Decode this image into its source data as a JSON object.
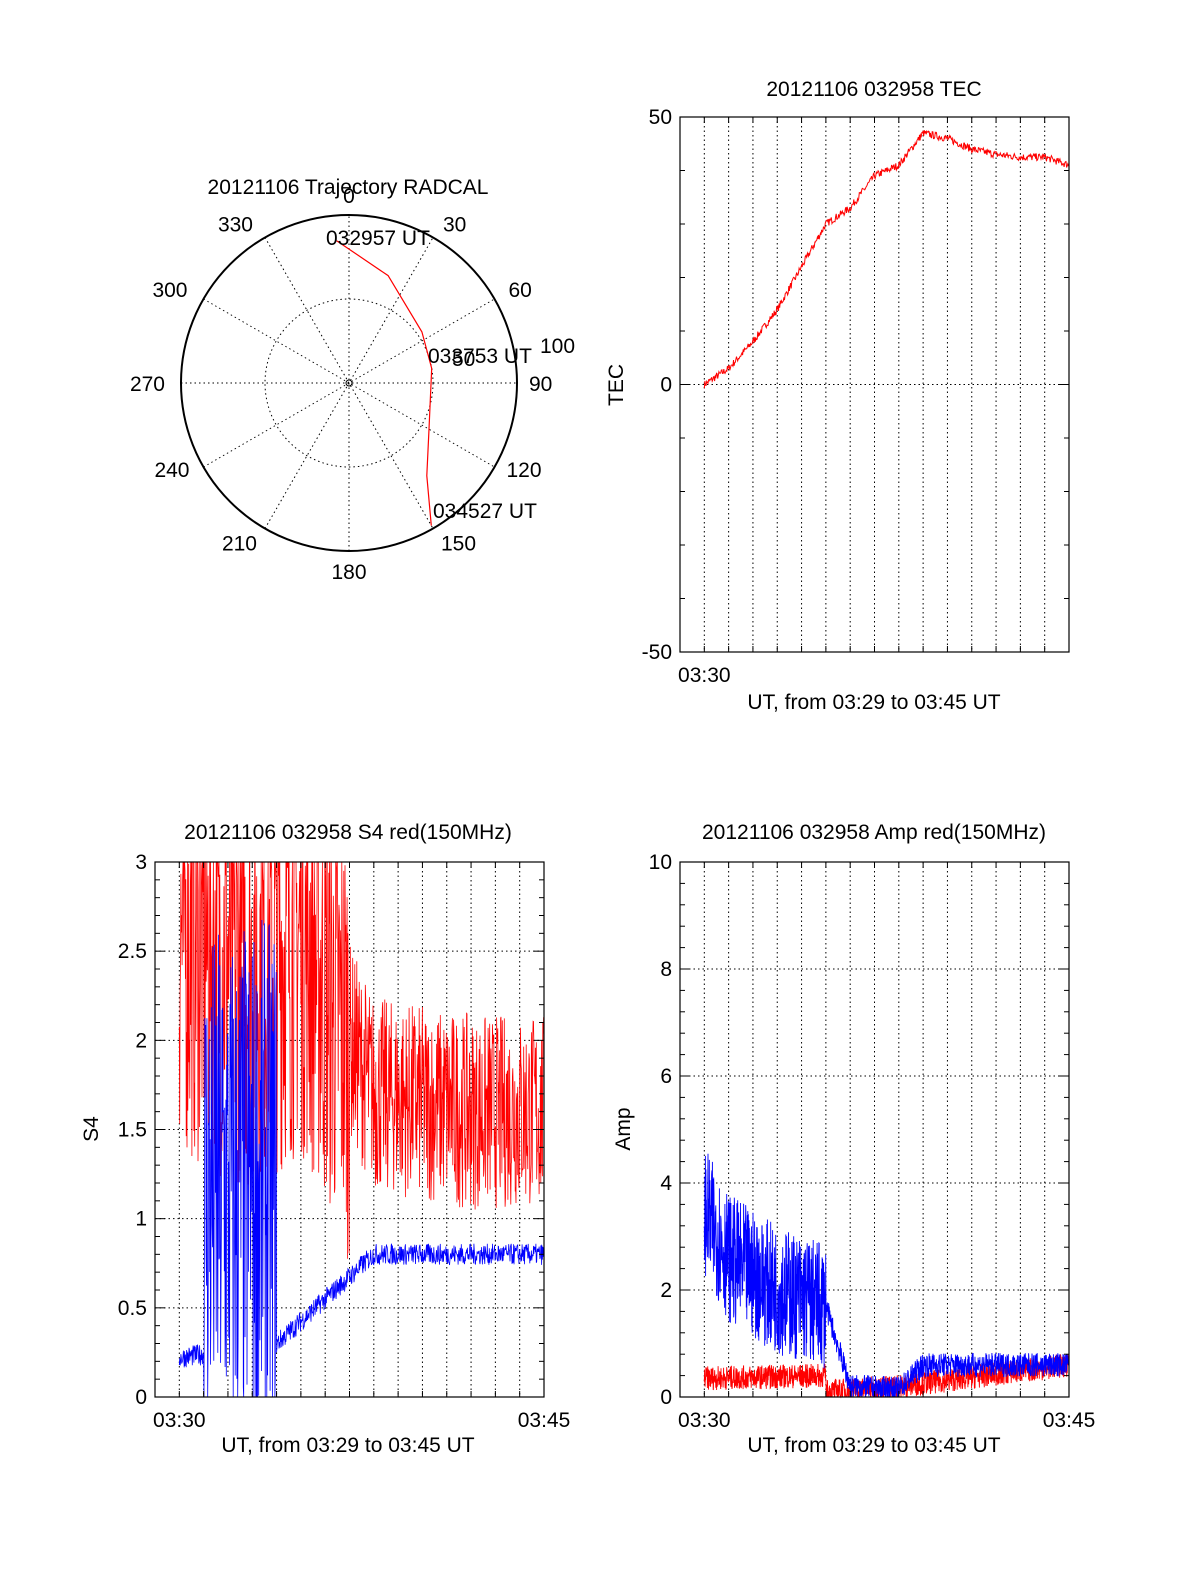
{
  "colors": {
    "red": "#ff0000",
    "blue": "#0000ff",
    "axis": "#000000"
  },
  "chart_data": [
    {
      "type": "polar",
      "title": "20121106 Trajectory RADCAL",
      "angle_labels": [
        "0",
        "30",
        "60",
        "90",
        "120",
        "150",
        "180",
        "210",
        "240",
        "270",
        "300",
        "330"
      ],
      "radius_labels": [
        "50",
        "100"
      ],
      "rmax": 100,
      "grid": true,
      "series": [
        {
          "color": "red",
          "points": [
            [
              -5,
              85
            ],
            [
              20,
              68
            ],
            [
              55,
              53
            ],
            [
              80,
              50
            ],
            [
              120,
              55
            ],
            [
              140,
              72
            ],
            [
              150,
              98
            ]
          ]
        }
      ],
      "annotations": [
        "032957 UT",
        "033753 UT",
        "034527 UT"
      ]
    },
    {
      "type": "line",
      "title": "20121106 032958 TEC",
      "xlabel": "UT, from 03:29 to 03:45 UT",
      "ylabel": "TEC",
      "xlim": [
        "03:29",
        "03:45"
      ],
      "xticks": [
        "03:30"
      ],
      "ylim": [
        -50,
        50
      ],
      "yticks": [
        "-50",
        "0",
        "50"
      ],
      "grid": true,
      "series": [
        {
          "color": "red",
          "x": [
            "03:30",
            "03:31",
            "03:32",
            "03:33",
            "03:34",
            "03:35",
            "03:36",
            "03:37",
            "03:38",
            "03:39",
            "03:40",
            "03:41",
            "03:42",
            "03:43",
            "03:44",
            "03:45"
          ],
          "y": [
            0,
            3,
            8,
            14,
            22,
            30,
            33,
            39,
            41,
            47,
            46,
            44,
            43,
            42.5,
            42.5,
            41
          ]
        }
      ]
    },
    {
      "type": "line",
      "title": "20121106 032958 S4 red(150MHz)",
      "xlabel": "UT, from 03:29 to 03:45 UT",
      "ylabel": "S4",
      "xlim": [
        "03:29",
        "03:45"
      ],
      "xticks": [
        "03:30",
        "03:45"
      ],
      "ylim": [
        0,
        3
      ],
      "yticks": [
        "0",
        "0.5",
        "1",
        "1.5",
        "2",
        "2.5",
        "3"
      ],
      "grid": true,
      "series": [
        {
          "color": "red",
          "x": [
            "03:30",
            "03:33",
            "03:35",
            "03:38",
            "03:40",
            "03:42",
            "03:45"
          ],
          "y": [
            2.6,
            2.4,
            2.6,
            1.7,
            1.65,
            1.6,
            1.6
          ]
        },
        {
          "color": "blue",
          "x": [
            "03:30",
            "03:32",
            "03:34",
            "03:38",
            "03:40",
            "03:42",
            "03:45"
          ],
          "y": [
            0.22,
            0.26,
            0.3,
            0.8,
            0.8,
            0.8,
            0.8
          ]
        }
      ]
    },
    {
      "type": "line",
      "title": "20121106 032958 Amp red(150MHz)",
      "xlabel": "UT, from 03:29 to 03:45 UT",
      "ylabel": "Amp",
      "xlim": [
        "03:29",
        "03:45"
      ],
      "xticks": [
        "03:30",
        "03:45"
      ],
      "ylim": [
        0,
        10
      ],
      "yticks": [
        "0",
        "2",
        "4",
        "6",
        "8",
        "10"
      ],
      "grid": true,
      "series": [
        {
          "color": "red",
          "x": [
            "03:30",
            "03:35",
            "03:35",
            "03:38",
            "03:45"
          ],
          "y": [
            0.35,
            0.4,
            0.1,
            0.2,
            0.6
          ]
        },
        {
          "color": "blue",
          "x": [
            "03:30",
            "03:31",
            "03:33",
            "03:35",
            "03:36",
            "03:38",
            "03:39",
            "03:42",
            "03:45"
          ],
          "y": [
            3.5,
            2.6,
            2.0,
            1.7,
            0.2,
            0.15,
            0.6,
            0.6,
            0.6
          ]
        }
      ]
    }
  ]
}
